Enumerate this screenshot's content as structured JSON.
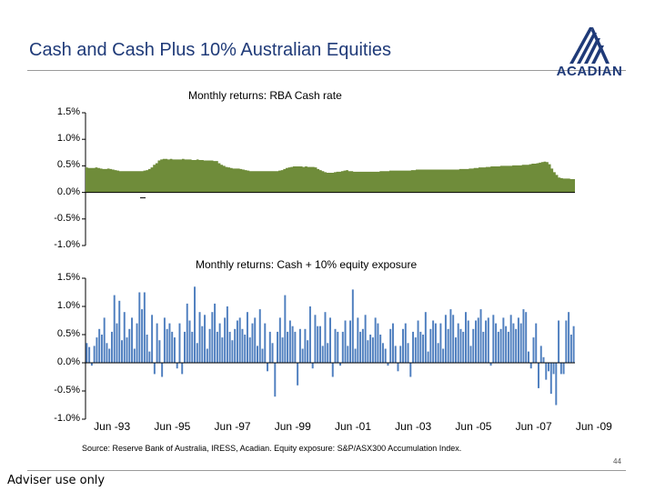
{
  "title": "Cash and Cash Plus 10% Australian Equities",
  "logo": {
    "text": "ACADIAN",
    "color": "#1f3a78"
  },
  "source": "Source: Reserve Bank of Australia, IRESS, Acadian. Equity exposure: S&P/ASX300 Accumulation Index.",
  "page_number": "44",
  "disclaimer": "Adviser use only",
  "chart_data": [
    {
      "type": "area",
      "title": "Monthly returns: RBA Cash rate",
      "x_ticks": [
        "Jun -93",
        "Jun -95",
        "Jun -97",
        "Jun -99",
        "Jun -01",
        "Jun -03",
        "Jun -05",
        "Jun -07",
        "Jun -09"
      ],
      "y_ticks": [
        "1.5%",
        "1.0%",
        "0.5%",
        "0.0%",
        "-0.5%",
        "-1.0%"
      ],
      "ylim": [
        -1.0,
        1.5
      ],
      "color": "#6f8c3a",
      "series": [
        {
          "start": "Jun -92",
          "interval": "month",
          "values": [
            0.47,
            0.46,
            0.46,
            0.46,
            0.47,
            0.46,
            0.45,
            0.44,
            0.44,
            0.45,
            0.44,
            0.43,
            0.42,
            0.41,
            0.4,
            0.4,
            0.4,
            0.4,
            0.4,
            0.4,
            0.4,
            0.4,
            0.4,
            0.4,
            0.41,
            0.42,
            0.44,
            0.47,
            0.52,
            0.55,
            0.6,
            0.62,
            0.63,
            0.63,
            0.62,
            0.63,
            0.62,
            0.62,
            0.62,
            0.62,
            0.63,
            0.62,
            0.62,
            0.62,
            0.61,
            0.61,
            0.62,
            0.61,
            0.61,
            0.6,
            0.6,
            0.6,
            0.6,
            0.59,
            0.59,
            0.55,
            0.52,
            0.5,
            0.48,
            0.47,
            0.46,
            0.45,
            0.45,
            0.45,
            0.44,
            0.43,
            0.42,
            0.41,
            0.4,
            0.4,
            0.4,
            0.4,
            0.4,
            0.4,
            0.4,
            0.4,
            0.4,
            0.4,
            0.4,
            0.4,
            0.41,
            0.42,
            0.44,
            0.46,
            0.47,
            0.48,
            0.49,
            0.49,
            0.49,
            0.49,
            0.48,
            0.49,
            0.48,
            0.48,
            0.48,
            0.47,
            0.44,
            0.42,
            0.4,
            0.38,
            0.37,
            0.37,
            0.37,
            0.38,
            0.39,
            0.39,
            0.4,
            0.41,
            0.42,
            0.4,
            0.4,
            0.39,
            0.39,
            0.39,
            0.39,
            0.39,
            0.39,
            0.39,
            0.39,
            0.39,
            0.39,
            0.39,
            0.4,
            0.4,
            0.4,
            0.4,
            0.41,
            0.41,
            0.41,
            0.41,
            0.41,
            0.41,
            0.41,
            0.41,
            0.41,
            0.42,
            0.42,
            0.43,
            0.43,
            0.43,
            0.43,
            0.43,
            0.43,
            0.43,
            0.43,
            0.43,
            0.43,
            0.43,
            0.43,
            0.43,
            0.43,
            0.43,
            0.43,
            0.43,
            0.43,
            0.44,
            0.44,
            0.44,
            0.44,
            0.45,
            0.45,
            0.46,
            0.46,
            0.47,
            0.47,
            0.47,
            0.48,
            0.48,
            0.49,
            0.49,
            0.49,
            0.49,
            0.5,
            0.5,
            0.5,
            0.5,
            0.5,
            0.51,
            0.51,
            0.51,
            0.51,
            0.52,
            0.52,
            0.52,
            0.53,
            0.54,
            0.54,
            0.55,
            0.56,
            0.57,
            0.58,
            0.57,
            0.53,
            0.45,
            0.38,
            0.33,
            0.28,
            0.27,
            0.26,
            0.26,
            0.26,
            0.25,
            0.25
          ]
        }
      ]
    },
    {
      "type": "bar",
      "title": "Monthly returns: Cash + 10% equity exposure",
      "x_ticks": [
        "Jun -93",
        "Jun -95",
        "Jun -97",
        "Jun -99",
        "Jun -01",
        "Jun -03",
        "Jun -05",
        "Jun -07",
        "Jun -09"
      ],
      "y_ticks": [
        "1.5%",
        "1.0%",
        "0.5%",
        "0.0%",
        "-0.5%",
        "-1.0%"
      ],
      "ylim": [
        -1.0,
        1.5
      ],
      "color": "#4f7fbf",
      "series": [
        {
          "start": "Jun -92",
          "interval": "month",
          "values": [
            0.35,
            0.28,
            -0.05,
            0.3,
            0.45,
            0.6,
            0.5,
            0.8,
            0.35,
            0.25,
            0.55,
            1.2,
            0.7,
            1.1,
            0.4,
            0.9,
            0.45,
            0.6,
            0.8,
            0.25,
            0.7,
            1.25,
            0.95,
            1.25,
            0.5,
            0.2,
            0.85,
            -0.2,
            0.7,
            0.4,
            -0.25,
            0.8,
            0.6,
            0.7,
            0.55,
            0.45,
            -0.1,
            0.7,
            -0.2,
            0.55,
            1.05,
            0.75,
            0.55,
            1.35,
            0.35,
            0.9,
            0.65,
            0.85,
            0.25,
            0.6,
            0.9,
            1.05,
            0.55,
            0.7,
            0.45,
            0.8,
            1.0,
            0.55,
            0.4,
            0.6,
            0.75,
            0.8,
            0.6,
            0.5,
            0.9,
            0.45,
            0.7,
            0.8,
            0.3,
            0.95,
            0.25,
            0.7,
            -0.15,
            0.55,
            0.35,
            -0.6,
            0.55,
            0.8,
            0.45,
            1.2,
            0.55,
            0.75,
            0.65,
            0.55,
            -0.4,
            0.6,
            0.25,
            0.6,
            0.4,
            1.0,
            -0.1,
            0.85,
            0.65,
            0.65,
            0.3,
            0.9,
            0.35,
            0.8,
            -0.25,
            0.6,
            0.55,
            -0.05,
            0.55,
            0.75,
            0.3,
            0.75,
            1.3,
            0.25,
            0.8,
            0.55,
            0.6,
            0.85,
            0.4,
            0.5,
            0.45,
            0.8,
            0.7,
            0.5,
            0.35,
            0.25,
            -0.05,
            0.6,
            0.7,
            0.3,
            -0.15,
            0.3,
            0.6,
            0.7,
            0.35,
            -0.25,
            0.55,
            0.45,
            0.75,
            0.55,
            0.5,
            0.9,
            0.2,
            0.6,
            0.75,
            0.7,
            0.35,
            0.7,
            0.25,
            0.85,
            0.6,
            0.95,
            0.85,
            0.45,
            0.7,
            0.6,
            0.55,
            0.9,
            0.75,
            0.3,
            0.6,
            0.75,
            0.8,
            0.95,
            0.55,
            0.75,
            0.8,
            -0.05,
            0.85,
            0.7,
            0.55,
            0.6,
            0.8,
            0.65,
            0.55,
            0.85,
            0.7,
            0.6,
            0.8,
            0.7,
            0.95,
            0.9,
            0.2,
            -0.1,
            0.45,
            0.7,
            -0.45,
            0.3,
            0.1,
            -0.3,
            -0.15,
            -0.55,
            -0.2,
            -0.75,
            0.75,
            -0.2,
            -0.2,
            0.75,
            0.9,
            0.5,
            0.65
          ]
        }
      ]
    }
  ]
}
